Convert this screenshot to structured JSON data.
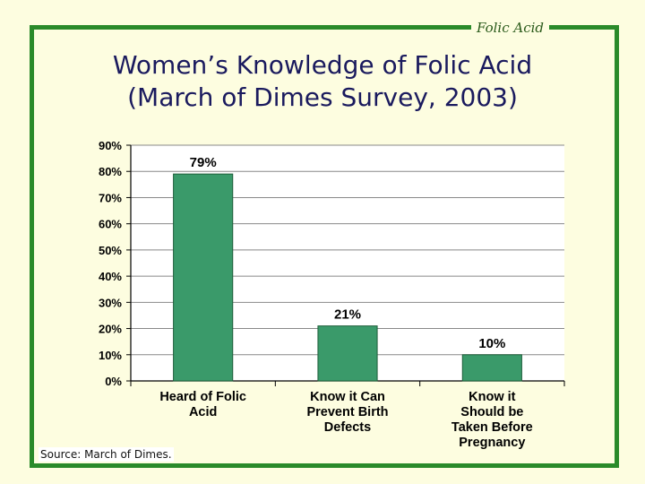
{
  "corner_label": "Folic Acid",
  "title_line1": "Women’s Knowledge of Folic Acid",
  "title_line2": "(March of Dimes Survey, 2003)",
  "source": "Source: March of Dimes.",
  "colors": {
    "frame": "#2a8a2a",
    "bar": "#3a9a6a",
    "background": "#fdfde0"
  },
  "chart_data": {
    "type": "bar",
    "categories": [
      [
        "Heard of Folic",
        "Acid"
      ],
      [
        "Know it Can",
        "Prevent Birth",
        "Defects"
      ],
      [
        "Know it",
        "Should be",
        "Taken Before",
        "Pregnancy"
      ]
    ],
    "values": [
      79,
      21,
      10
    ],
    "data_labels": [
      "79%",
      "21%",
      "10%"
    ],
    "ylim": [
      0,
      90
    ],
    "yticks": [
      "0%",
      "10%",
      "20%",
      "30%",
      "40%",
      "50%",
      "60%",
      "70%",
      "80%",
      "90%"
    ],
    "grid": true
  }
}
